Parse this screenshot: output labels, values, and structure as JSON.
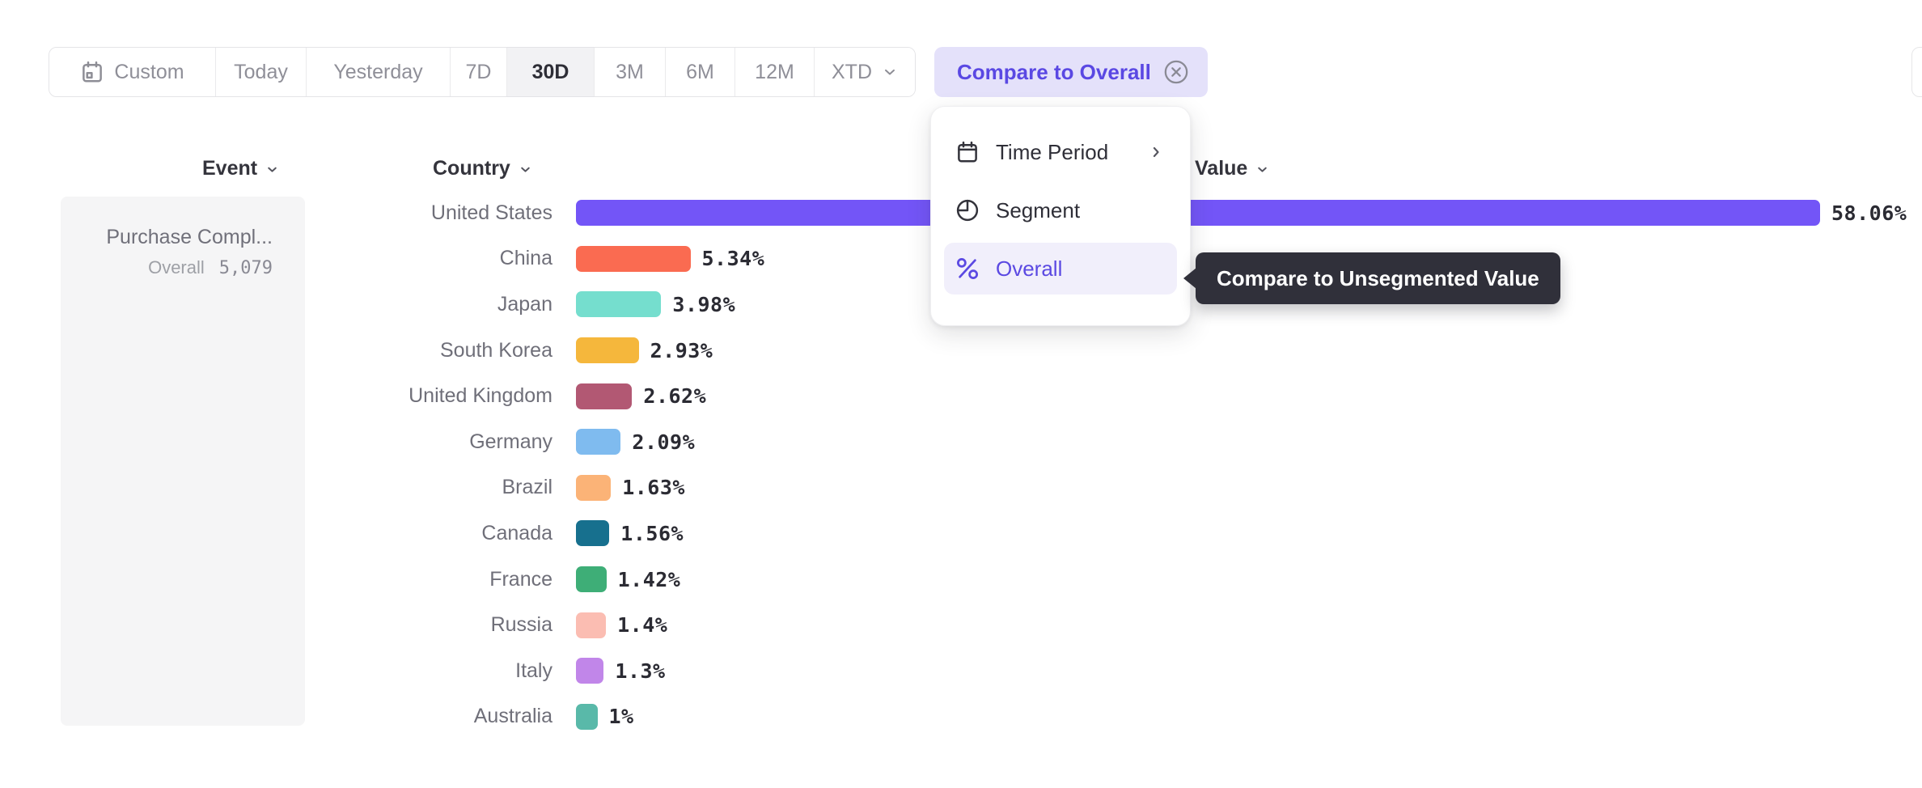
{
  "toolbar": {
    "date_presets": [
      "Custom",
      "Today",
      "Yesterday",
      "7D",
      "30D",
      "3M",
      "6M",
      "12M",
      "XTD"
    ],
    "selected_preset": "30D",
    "compare_pill_label": "Compare to Overall"
  },
  "columns": {
    "event": "Event",
    "country": "Country",
    "value": "Value"
  },
  "event_card": {
    "title": "Purchase Compl...",
    "overall_label": "Overall",
    "overall_value": "5,079"
  },
  "menu": {
    "items": [
      {
        "label": "Time Period",
        "icon": "calendar-icon",
        "has_submenu": true,
        "active": false
      },
      {
        "label": "Segment",
        "icon": "segment-icon",
        "has_submenu": false,
        "active": false
      },
      {
        "label": "Overall",
        "icon": "percent-icon",
        "has_submenu": false,
        "active": true
      }
    ]
  },
  "tooltip": {
    "text": "Compare to Unsegmented Value"
  },
  "chart_data": {
    "type": "bar",
    "orientation": "horizontal",
    "title": "",
    "xlabel": "Value (%)",
    "ylabel": "Country",
    "xlim": [
      0,
      60
    ],
    "grid": false,
    "categories": [
      "United States",
      "China",
      "Japan",
      "South Korea",
      "United Kingdom",
      "Germany",
      "Brazil",
      "Canada",
      "France",
      "Russia",
      "Italy",
      "Australia"
    ],
    "values": [
      58.06,
      5.34,
      3.98,
      2.93,
      2.62,
      2.09,
      1.63,
      1.56,
      1.42,
      1.4,
      1.3,
      1
    ],
    "value_labels": [
      "58.06%",
      "5.34%",
      "3.98%",
      "2.93%",
      "2.62%",
      "2.09%",
      "1.63%",
      "1.56%",
      "1.42%",
      "1.4%",
      "1.3%",
      "1%"
    ],
    "colors": [
      "#7355F7",
      "#FA6B51",
      "#75DECE",
      "#F5B73C",
      "#B25873",
      "#7FBBEF",
      "#FBB377",
      "#17708E",
      "#3EAE77",
      "#FBBDB2",
      "#C186E9",
      "#59B9A9"
    ]
  },
  "accent_colors": {
    "purple": "#5A48E3",
    "pill_bg": "#E4E1FA",
    "menu_active_bg": "#F1EFFB",
    "tooltip_bg": "#30303A"
  }
}
